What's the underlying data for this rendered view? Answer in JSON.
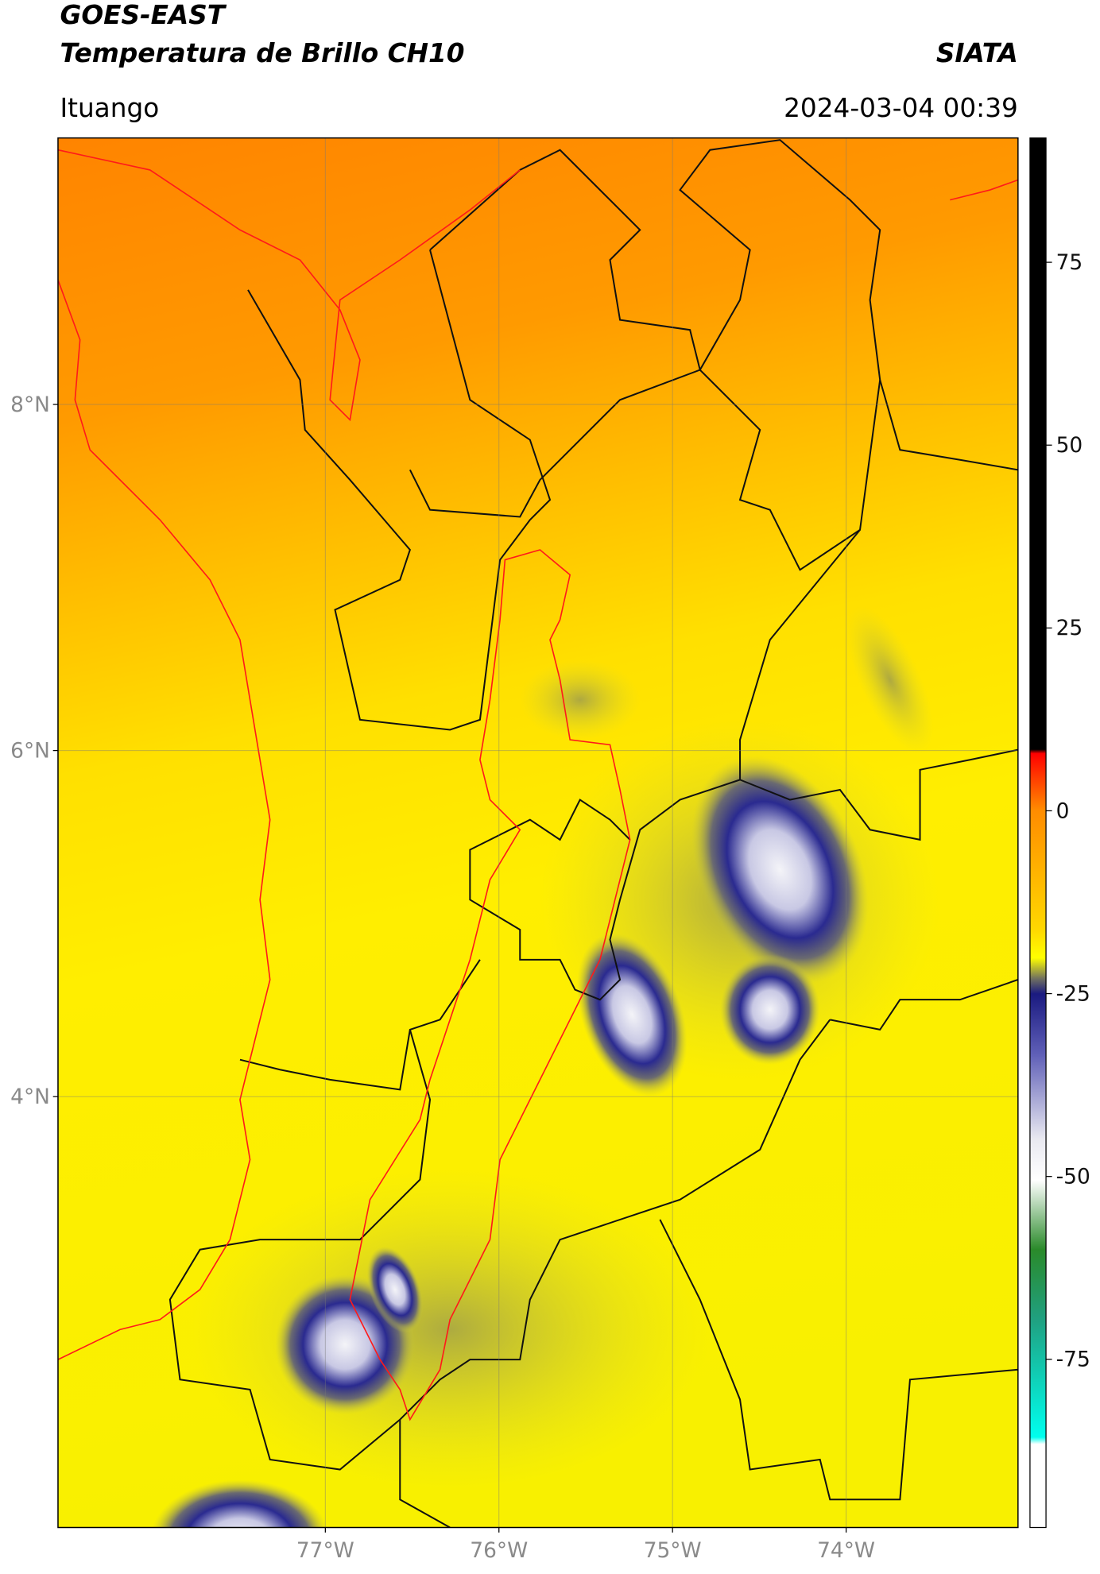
{
  "header": {
    "title": "GOES-EAST",
    "subtitle": "Temperatura de Brillo CH10",
    "source": "SIATA",
    "location": "Ituango",
    "datetime": "2024-03-04 00:39"
  },
  "map": {
    "xlim": [
      -78.54,
      -73.01
    ],
    "ylim": [
      1.51,
      9.54
    ],
    "xticks": [
      {
        "value": -77,
        "label": "77°W"
      },
      {
        "value": -76,
        "label": "76°W"
      },
      {
        "value": -75,
        "label": "75°W"
      },
      {
        "value": -74,
        "label": "74°W"
      }
    ],
    "yticks": [
      {
        "value": 8,
        "label": "8°N"
      },
      {
        "value": 6,
        "label": "6°N"
      },
      {
        "value": 4,
        "label": "4°N"
      }
    ],
    "grid": true
  },
  "colorbar": {
    "range": [
      -98,
      92
    ],
    "ticks": [
      75,
      50,
      25,
      0,
      -25,
      -50,
      -75
    ]
  }
}
